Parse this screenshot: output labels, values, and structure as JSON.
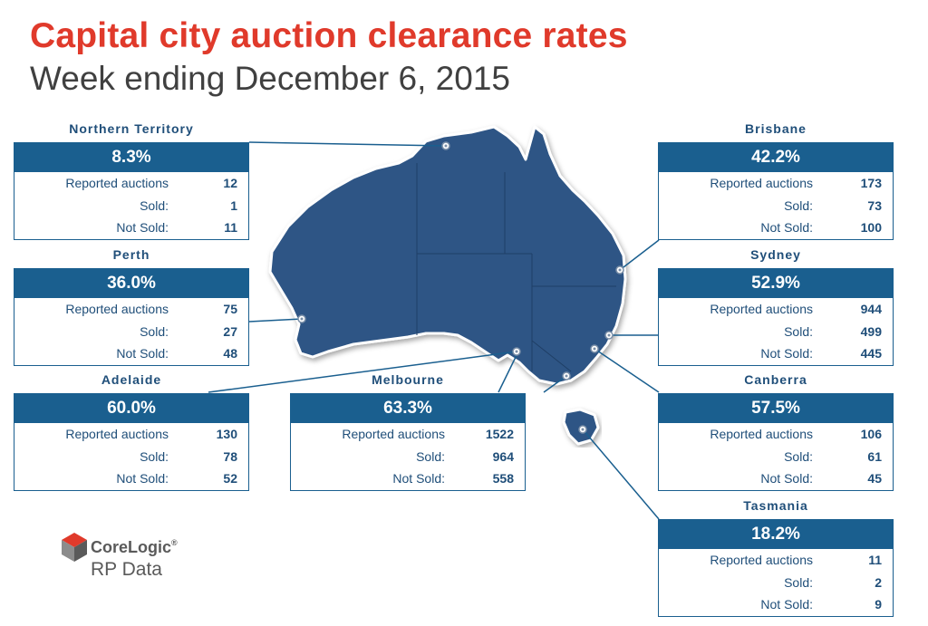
{
  "header": {
    "title": "Capital city auction clearance rates",
    "subtitle": "Week ending December 6, 2015"
  },
  "row_labels": {
    "reported": "Reported auctions",
    "sold": "Sold:",
    "not_sold": "Not Sold:"
  },
  "cities": {
    "nt": {
      "name": "Northern Territory",
      "rate": "8.3%",
      "reported": "12",
      "sold": "1",
      "not_sold": "11"
    },
    "perth": {
      "name": "Perth",
      "rate": "36.0%",
      "reported": "75",
      "sold": "27",
      "not_sold": "48"
    },
    "adelaide": {
      "name": "Adelaide",
      "rate": "60.0%",
      "reported": "130",
      "sold": "78",
      "not_sold": "52"
    },
    "melbourne": {
      "name": "Melbourne",
      "rate": "63.3%",
      "reported": "1522",
      "sold": "964",
      "not_sold": "558"
    },
    "brisbane": {
      "name": "Brisbane",
      "rate": "42.2%",
      "reported": "173",
      "sold": "73",
      "not_sold": "100"
    },
    "sydney": {
      "name": "Sydney",
      "rate": "52.9%",
      "reported": "944",
      "sold": "499",
      "not_sold": "445"
    },
    "canberra": {
      "name": "Canberra",
      "rate": "57.5%",
      "reported": "106",
      "sold": "61",
      "not_sold": "45"
    },
    "tasmania": {
      "name": "Tasmania",
      "rate": "18.2%",
      "reported": "11",
      "sold": "2",
      "not_sold": "9"
    }
  },
  "logo": {
    "name": "CoreLogic",
    "registered": "®",
    "sub": "RP Data"
  },
  "colors": {
    "title_red": "#e03a2b",
    "box_blue": "#1a5f8f",
    "map_fill": "#2f5585",
    "label_blue": "#1f4e79"
  }
}
